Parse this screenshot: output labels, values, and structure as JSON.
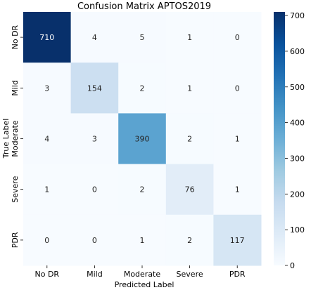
{
  "chart_data": {
    "type": "heatmap",
    "title": "Confusion Matrix APTOS2019",
    "xlabel": "Predicted Label",
    "ylabel": "True Label",
    "x_categories": [
      "No DR",
      "Mild",
      "Moderate",
      "Severe",
      "PDR"
    ],
    "y_categories": [
      "No DR",
      "Mild",
      "Moderate",
      "Severe",
      "PDR"
    ],
    "values": [
      [
        710,
        4,
        5,
        1,
        0
      ],
      [
        3,
        154,
        2,
        1,
        0
      ],
      [
        4,
        3,
        390,
        2,
        1
      ],
      [
        1,
        0,
        2,
        76,
        1
      ],
      [
        0,
        0,
        1,
        2,
        117
      ]
    ],
    "colorbar": {
      "vmin": 0,
      "vmax": 710,
      "ticks": [
        0,
        100,
        200,
        300,
        400,
        500,
        600,
        700
      ],
      "colormap": "Blues",
      "low_color": "#f7fbff",
      "high_color": "#08306b"
    },
    "grid": false
  }
}
